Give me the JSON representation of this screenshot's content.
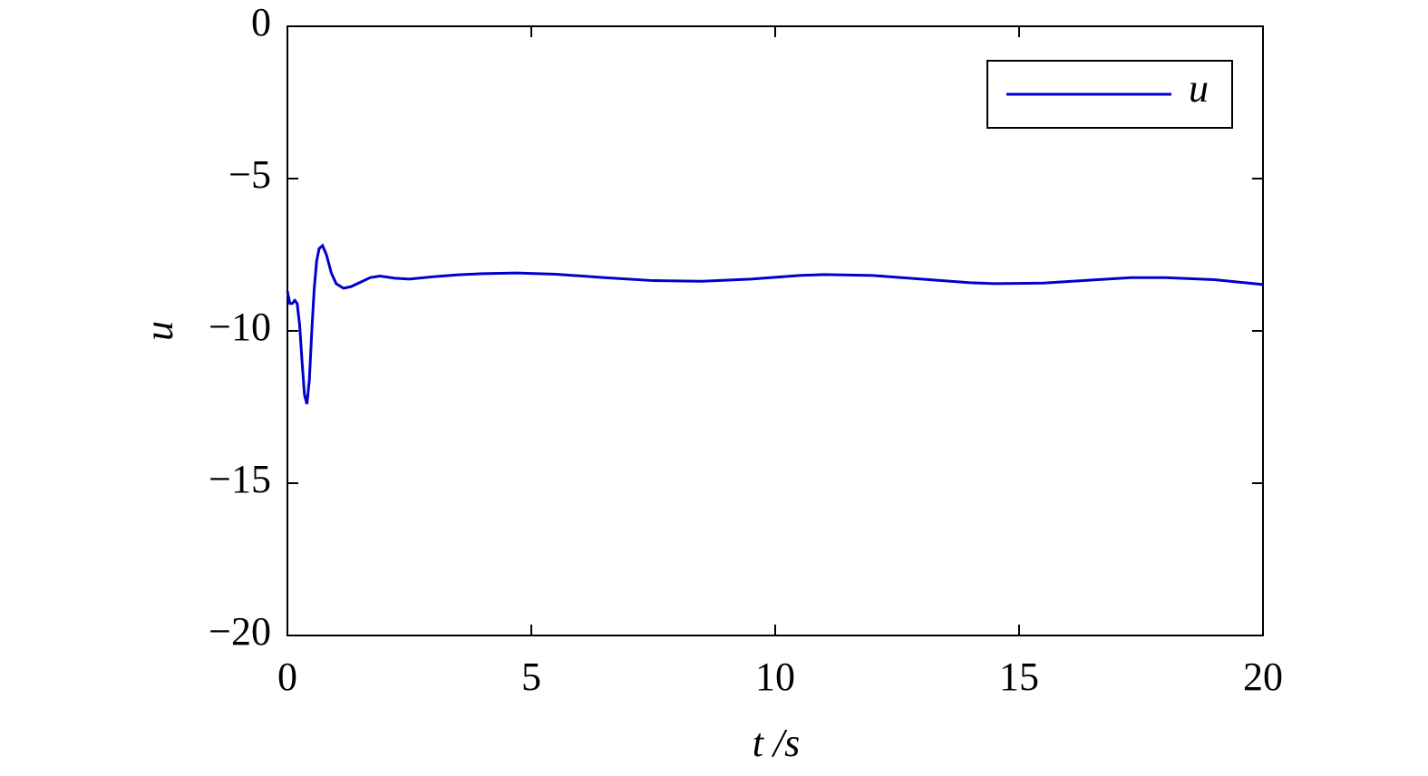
{
  "chart_data": {
    "type": "line",
    "xlabel": "t /s",
    "ylabel": "u",
    "x": [
      0,
      0.05,
      0.1,
      0.15,
      0.2,
      0.25,
      0.3,
      0.35,
      0.4,
      0.45,
      0.5,
      0.55,
      0.6,
      0.65,
      0.72,
      0.8,
      0.9,
      1.0,
      1.15,
      1.3,
      1.5,
      1.7,
      1.9,
      2.2,
      2.5,
      3,
      3.5,
      4,
      4.7,
      5.5,
      6.5,
      7.5,
      8.5,
      9.5,
      10.5,
      11,
      12,
      13,
      14,
      14.5,
      15.5,
      16.5,
      17.3,
      18,
      19,
      20
    ],
    "series": [
      {
        "name": "u",
        "color": "#0000cc",
        "values": [
          -8.7,
          -9.1,
          -9.1,
          -9.0,
          -9.1,
          -9.8,
          -11.0,
          -12.1,
          -12.4,
          -11.6,
          -10.0,
          -8.6,
          -7.7,
          -7.3,
          -7.2,
          -7.5,
          -8.1,
          -8.45,
          -8.6,
          -8.55,
          -8.4,
          -8.25,
          -8.2,
          -8.27,
          -8.3,
          -8.22,
          -8.16,
          -8.12,
          -8.1,
          -8.14,
          -8.25,
          -8.35,
          -8.37,
          -8.3,
          -8.18,
          -8.15,
          -8.18,
          -8.3,
          -8.42,
          -8.45,
          -8.43,
          -8.33,
          -8.25,
          -8.25,
          -8.32,
          -8.48
        ]
      }
    ],
    "xlim": [
      0,
      20
    ],
    "xticks": [
      0,
      5,
      10,
      15,
      20
    ],
    "ylim": [
      -20,
      0
    ],
    "yticks": [
      {
        "value": -20,
        "label": "−20"
      },
      {
        "value": -15,
        "label": "−15"
      },
      {
        "value": -10,
        "label": "−10"
      },
      {
        "value": -5,
        "label": "−5"
      },
      0
    ],
    "grid": false,
    "legend": "upper right"
  }
}
